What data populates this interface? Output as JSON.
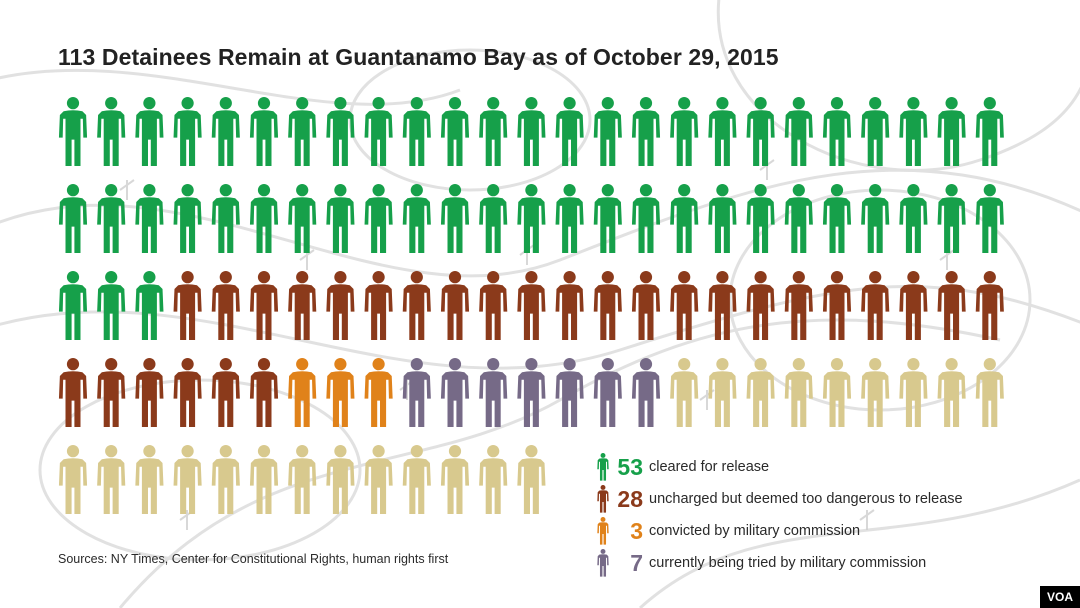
{
  "title": "113 Detainees Remain at Guantanamo Bay as of October 29, 2015",
  "source": "Sources: NY Times, Center for Constitutional Rights, human rights first",
  "logo": "VOA",
  "icon": "person-icon",
  "chart_data": {
    "type": "pictograph",
    "title": "113 Detainees Remain at Guantanamo Bay as of October 29, 2015",
    "total": 113,
    "categories": [
      {
        "value": 53,
        "label": "cleared for release",
        "color": "#16a04a"
      },
      {
        "value": 28,
        "label": "uncharged but deemed too dangerous to release",
        "color": "#8b3a1b"
      },
      {
        "value": 3,
        "label": "convicted by military commission",
        "color": "#e0821a"
      },
      {
        "value": 7,
        "label": "currently being tried by military commission",
        "color": "#766a87"
      },
      {
        "value": 22,
        "label": "",
        "color": "#d8c98e"
      }
    ]
  }
}
